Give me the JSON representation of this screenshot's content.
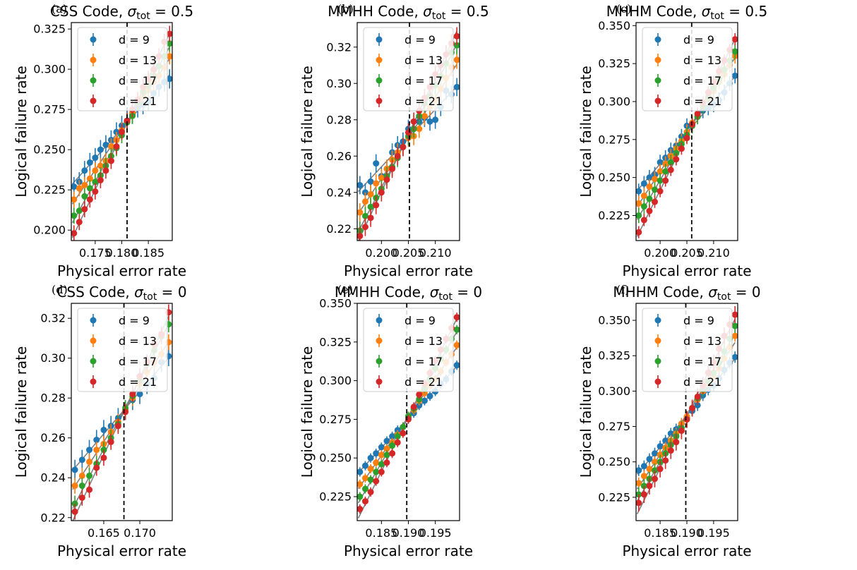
{
  "xlabel": "Physical error rate",
  "ylabel": "Logical failure rate",
  "legend_labels": [
    "d = 9",
    "d = 13",
    "d = 17",
    "d = 21"
  ],
  "colors": [
    "#1f77b4",
    "#ff7f0e",
    "#2ca02c",
    "#d62728"
  ],
  "fit_line_color": "#808080",
  "chart_data": [
    {
      "type": "scatter",
      "panel_label": "(a)",
      "title_prefix": "CSS Code, ",
      "sigma_value": "0.5",
      "x": [
        0.171,
        0.172,
        0.173,
        0.174,
        0.175,
        0.176,
        0.177,
        0.178,
        0.179,
        0.18,
        0.181,
        0.182,
        0.183,
        0.184,
        0.185,
        0.186,
        0.187,
        0.188,
        0.189
      ],
      "xlim": [
        0.1705,
        0.1895
      ],
      "ylim": [
        0.1935,
        0.329
      ],
      "xticks": [
        0.175,
        0.18,
        0.185
      ],
      "xtick_labels": [
        "0.175",
        "0.180",
        "0.185"
      ],
      "yticks": [
        0.2,
        0.225,
        0.25,
        0.275,
        0.3,
        0.325
      ],
      "ytick_labels": [
        "0.200",
        "0.225",
        "0.250",
        "0.275",
        "0.300",
        "0.325"
      ],
      "threshold": 0.181,
      "series": [
        {
          "name": "d = 9",
          "values": [
            0.227,
            0.23,
            0.237,
            0.242,
            0.245,
            0.25,
            0.253,
            0.256,
            0.261,
            0.265,
            0.268,
            0.272,
            0.276,
            0.278,
            0.28,
            0.285,
            0.289,
            0.292,
            0.294
          ],
          "err": 0.006
        },
        {
          "name": "d = 13",
          "values": [
            0.219,
            0.226,
            0.228,
            0.232,
            0.237,
            0.24,
            0.243,
            0.252,
            0.256,
            0.262,
            0.267,
            0.273,
            0.279,
            0.283,
            0.287,
            0.292,
            0.296,
            0.301,
            0.308
          ],
          "err": 0.005
        },
        {
          "name": "d = 17",
          "values": [
            0.209,
            0.212,
            0.221,
            0.226,
            0.23,
            0.234,
            0.24,
            0.246,
            0.251,
            0.259,
            0.267,
            0.271,
            0.279,
            0.286,
            0.29,
            0.296,
            0.302,
            0.308,
            0.316
          ],
          "err": 0.005
        },
        {
          "name": "d = 21",
          "values": [
            0.198,
            0.205,
            0.213,
            0.219,
            0.224,
            0.231,
            0.237,
            0.243,
            0.252,
            0.261,
            0.268,
            0.275,
            0.281,
            0.289,
            0.294,
            0.3,
            0.308,
            0.317,
            0.322
          ],
          "err": 0.005
        }
      ]
    },
    {
      "type": "scatter",
      "panel_label": "(b)",
      "title_prefix": "MMHH Code, ",
      "sigma_value": "0.5",
      "x": [
        0.196,
        0.197,
        0.198,
        0.199,
        0.2,
        0.201,
        0.202,
        0.203,
        0.204,
        0.205,
        0.206,
        0.207,
        0.208,
        0.209,
        0.21,
        0.211,
        0.212,
        0.213,
        0.214
      ],
      "xlim": [
        0.1955,
        0.2145
      ],
      "ylim": [
        0.2135,
        0.3335
      ],
      "xticks": [
        0.2,
        0.205,
        0.21
      ],
      "xtick_labels": [
        "0.200",
        "0.205",
        "0.210"
      ],
      "yticks": [
        0.22,
        0.24,
        0.26,
        0.28,
        0.3,
        0.32
      ],
      "ytick_labels": [
        "0.22",
        "0.24",
        "0.26",
        "0.28",
        "0.30",
        "0.32"
      ],
      "threshold": 0.2052,
      "series": [
        {
          "name": "d = 9",
          "values": [
            0.244,
            0.24,
            0.246,
            0.256,
            0.249,
            0.253,
            0.262,
            0.266,
            0.268,
            0.275,
            0.275,
            0.279,
            0.281,
            0.279,
            0.28,
            0.287,
            0.296,
            0.294,
            0.298
          ],
          "err": 0.005
        },
        {
          "name": "d = 13",
          "values": [
            0.229,
            0.235,
            0.239,
            0.245,
            0.248,
            0.253,
            0.258,
            0.262,
            0.265,
            0.27,
            0.271,
            0.275,
            0.282,
            0.287,
            0.291,
            0.297,
            0.303,
            0.309,
            0.313
          ],
          "err": 0.005
        },
        {
          "name": "d = 17",
          "values": [
            0.219,
            0.227,
            0.232,
            0.237,
            0.242,
            0.249,
            0.254,
            0.259,
            0.265,
            0.271,
            0.275,
            0.282,
            0.289,
            0.293,
            0.299,
            0.304,
            0.311,
            0.317,
            0.321
          ],
          "err": 0.005
        },
        {
          "name": "d = 21",
          "values": [
            0.216,
            0.221,
            0.226,
            0.233,
            0.24,
            0.247,
            0.253,
            0.26,
            0.265,
            0.273,
            0.279,
            0.285,
            0.292,
            0.298,
            0.305,
            0.31,
            0.316,
            0.322,
            0.326
          ],
          "err": 0.005
        }
      ]
    },
    {
      "type": "scatter",
      "panel_label": "(c)",
      "title_prefix": "MHHM Code, ",
      "sigma_value": "0.5",
      "x": [
        0.196,
        0.197,
        0.198,
        0.199,
        0.2,
        0.201,
        0.202,
        0.203,
        0.204,
        0.205,
        0.206,
        0.207,
        0.208,
        0.209,
        0.21,
        0.211,
        0.212,
        0.213,
        0.214
      ],
      "xlim": [
        0.1955,
        0.2145
      ],
      "ylim": [
        0.2085,
        0.352
      ],
      "xticks": [
        0.2,
        0.205,
        0.21
      ],
      "xtick_labels": [
        "0.200",
        "0.205",
        "0.210"
      ],
      "yticks": [
        0.225,
        0.25,
        0.275,
        0.3,
        0.325,
        0.35
      ],
      "ytick_labels": [
        "0.225",
        "0.250",
        "0.275",
        "0.300",
        "0.325",
        "0.350"
      ],
      "threshold": 0.2059,
      "series": [
        {
          "name": "d = 9",
          "values": [
            0.241,
            0.246,
            0.25,
            0.252,
            0.26,
            0.263,
            0.268,
            0.271,
            0.277,
            0.284,
            0.285,
            0.29,
            0.294,
            0.296,
            0.298,
            0.301,
            0.306,
            0.312,
            0.317
          ],
          "err": 0.005
        },
        {
          "name": "d = 13",
          "values": [
            0.233,
            0.238,
            0.244,
            0.249,
            0.254,
            0.259,
            0.264,
            0.269,
            0.274,
            0.28,
            0.286,
            0.291,
            0.297,
            0.302,
            0.307,
            0.313,
            0.318,
            0.324,
            0.33
          ],
          "err": 0.005
        },
        {
          "name": "d = 17",
          "values": [
            0.225,
            0.231,
            0.236,
            0.242,
            0.248,
            0.254,
            0.26,
            0.266,
            0.272,
            0.278,
            0.284,
            0.29,
            0.297,
            0.303,
            0.309,
            0.315,
            0.321,
            0.327,
            0.333
          ],
          "err": 0.005
        },
        {
          "name": "d = 21",
          "values": [
            0.214,
            0.222,
            0.228,
            0.234,
            0.241,
            0.248,
            0.255,
            0.262,
            0.269,
            0.276,
            0.285,
            0.292,
            0.299,
            0.306,
            0.313,
            0.32,
            0.327,
            0.334,
            0.341
          ],
          "err": 0.004
        }
      ]
    },
    {
      "type": "scatter",
      "panel_label": "(d)",
      "title_prefix": "CSS Code, ",
      "sigma_value": "0",
      "x": [
        0.161,
        0.162,
        0.163,
        0.164,
        0.165,
        0.166,
        0.167,
        0.168,
        0.169,
        0.17,
        0.171,
        0.172,
        0.173,
        0.174
      ],
      "xlim": [
        0.1605,
        0.1745
      ],
      "ylim": [
        0.2185,
        0.3275
      ],
      "xticks": [
        0.165,
        0.17
      ],
      "xtick_labels": [
        "0.165",
        "0.170"
      ],
      "yticks": [
        0.22,
        0.24,
        0.26,
        0.28,
        0.3,
        0.32
      ],
      "ytick_labels": [
        "0.22",
        "0.24",
        "0.26",
        "0.28",
        "0.30",
        "0.32"
      ],
      "threshold": 0.1678,
      "series": [
        {
          "name": "d = 9",
          "values": [
            0.244,
            0.249,
            0.254,
            0.259,
            0.264,
            0.266,
            0.27,
            0.274,
            0.279,
            0.282,
            0.287,
            0.29,
            0.298,
            0.301
          ],
          "err": 0.005
        },
        {
          "name": "d = 13",
          "values": [
            0.236,
            0.241,
            0.248,
            0.254,
            0.257,
            0.263,
            0.268,
            0.274,
            0.28,
            0.287,
            0.293,
            0.298,
            0.302,
            0.308
          ],
          "err": 0.004
        },
        {
          "name": "d = 17",
          "values": [
            0.227,
            0.236,
            0.241,
            0.247,
            0.254,
            0.26,
            0.267,
            0.275,
            0.281,
            0.289,
            0.297,
            0.304,
            0.311,
            0.317
          ],
          "err": 0.004
        },
        {
          "name": "d = 21",
          "values": [
            0.223,
            0.23,
            0.234,
            0.245,
            0.25,
            0.258,
            0.266,
            0.273,
            0.282,
            0.291,
            0.298,
            0.307,
            0.312,
            0.323
          ],
          "err": 0.004
        }
      ]
    },
    {
      "type": "scatter",
      "panel_label": "(e)",
      "title_prefix": "MMHH Code, ",
      "sigma_value": "0",
      "x": [
        0.181,
        0.182,
        0.183,
        0.184,
        0.185,
        0.186,
        0.187,
        0.188,
        0.189,
        0.19,
        0.191,
        0.192,
        0.193,
        0.194,
        0.195,
        0.196,
        0.197,
        0.198,
        0.199
      ],
      "xlim": [
        0.1805,
        0.1995
      ],
      "ylim": [
        0.2095,
        0.35
      ],
      "xticks": [
        0.185,
        0.19,
        0.195
      ],
      "xtick_labels": [
        "0.185",
        "0.190",
        "0.195"
      ],
      "yticks": [
        0.225,
        0.25,
        0.275,
        0.3,
        0.325,
        0.35
      ],
      "ytick_labels": [
        "0.225",
        "0.250",
        "0.275",
        "0.300",
        "0.325",
        "0.350"
      ],
      "threshold": 0.1897,
      "series": [
        {
          "name": "d = 9",
          "values": [
            0.241,
            0.245,
            0.25,
            0.253,
            0.257,
            0.261,
            0.264,
            0.268,
            0.27,
            0.276,
            0.279,
            0.284,
            0.287,
            0.29,
            0.293,
            0.298,
            0.301,
            0.306,
            0.31
          ],
          "err": 0.003
        },
        {
          "name": "d = 13",
          "values": [
            0.233,
            0.237,
            0.243,
            0.247,
            0.252,
            0.256,
            0.26,
            0.265,
            0.27,
            0.277,
            0.281,
            0.287,
            0.292,
            0.297,
            0.301,
            0.306,
            0.312,
            0.317,
            0.323
          ],
          "err": 0.003
        },
        {
          "name": "d = 17",
          "values": [
            0.225,
            0.23,
            0.236,
            0.241,
            0.246,
            0.252,
            0.258,
            0.264,
            0.27,
            0.277,
            0.282,
            0.288,
            0.295,
            0.301,
            0.308,
            0.314,
            0.32,
            0.327,
            0.333
          ],
          "err": 0.003
        },
        {
          "name": "d = 21",
          "values": [
            0.217,
            0.222,
            0.228,
            0.235,
            0.241,
            0.247,
            0.253,
            0.26,
            0.266,
            0.275,
            0.283,
            0.291,
            0.298,
            0.305,
            0.313,
            0.32,
            0.327,
            0.334,
            0.341
          ],
          "err": 0.003
        }
      ]
    },
    {
      "type": "scatter",
      "panel_label": "(f)",
      "title_prefix": "MHHM Code, ",
      "sigma_value": "0",
      "x": [
        0.181,
        0.182,
        0.183,
        0.184,
        0.185,
        0.186,
        0.187,
        0.188,
        0.189,
        0.19,
        0.191,
        0.192,
        0.193,
        0.194,
        0.195,
        0.196,
        0.197,
        0.198,
        0.199
      ],
      "xlim": [
        0.1805,
        0.1995
      ],
      "ylim": [
        0.2085,
        0.362
      ],
      "xticks": [
        0.185,
        0.19,
        0.195
      ],
      "xtick_labels": [
        "0.185",
        "0.190",
        "0.195"
      ],
      "yticks": [
        0.225,
        0.25,
        0.275,
        0.3,
        0.325,
        0.35
      ],
      "ytick_labels": [
        "0.225",
        "0.250",
        "0.275",
        "0.300",
        "0.325",
        "0.350"
      ],
      "threshold": 0.1898,
      "series": [
        {
          "name": "d = 9",
          "values": [
            0.244,
            0.247,
            0.252,
            0.256,
            0.261,
            0.265,
            0.27,
            0.273,
            0.277,
            0.281,
            0.286,
            0.29,
            0.297,
            0.301,
            0.304,
            0.309,
            0.315,
            0.32,
            0.324
          ],
          "err": 0.004
        },
        {
          "name": "d = 13",
          "values": [
            0.235,
            0.24,
            0.245,
            0.25,
            0.255,
            0.26,
            0.265,
            0.27,
            0.277,
            0.282,
            0.288,
            0.294,
            0.3,
            0.305,
            0.31,
            0.316,
            0.323,
            0.331,
            0.339
          ],
          "err": 0.004
        },
        {
          "name": "d = 17",
          "values": [
            0.227,
            0.233,
            0.238,
            0.244,
            0.25,
            0.256,
            0.262,
            0.268,
            0.274,
            0.28,
            0.288,
            0.295,
            0.301,
            0.307,
            0.313,
            0.32,
            0.328,
            0.337,
            0.346
          ],
          "err": 0.005
        },
        {
          "name": "d = 21",
          "values": [
            0.221,
            0.227,
            0.233,
            0.238,
            0.245,
            0.251,
            0.258,
            0.264,
            0.272,
            0.28,
            0.288,
            0.296,
            0.304,
            0.313,
            0.32,
            0.33,
            0.339,
            0.347,
            0.354
          ],
          "err": 0.006
        }
      ]
    }
  ]
}
